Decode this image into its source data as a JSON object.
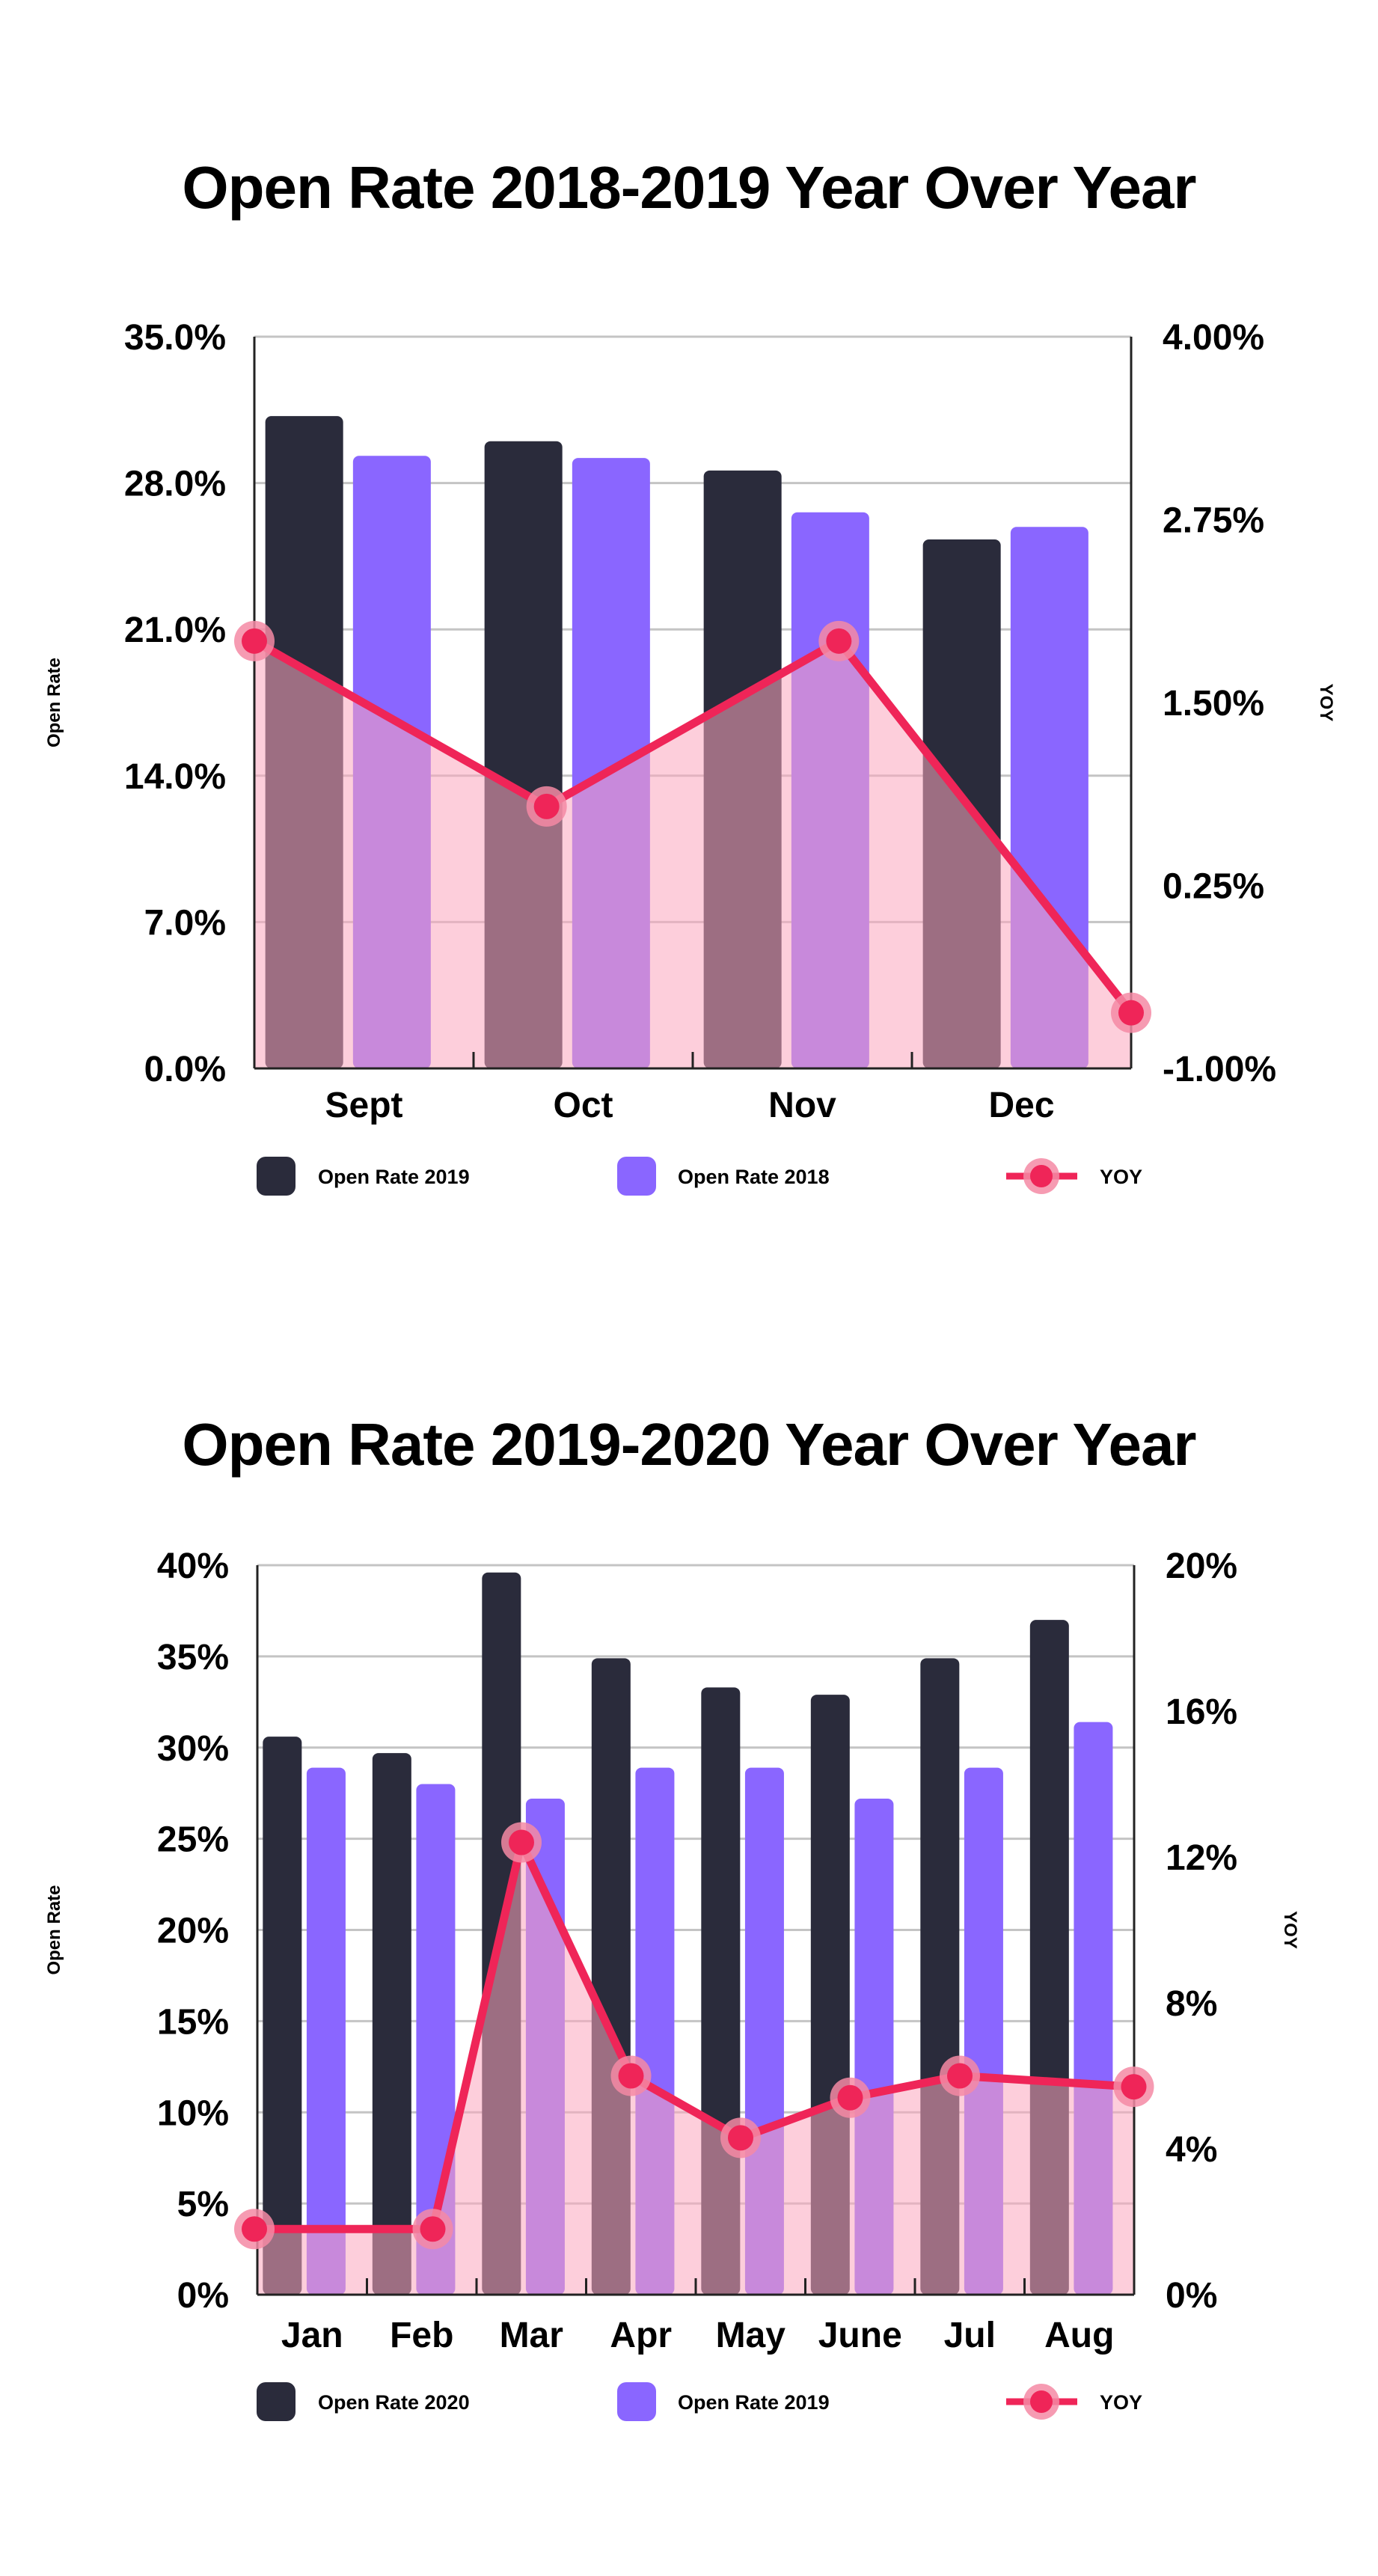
{
  "colors": {
    "dark_bar": "#2a2b3b",
    "purple_bar": "#8a66ff",
    "yoy_line": "#ef2558",
    "yoy_marker_halo": "#f48aa5",
    "yoy_area": "#fba6bd",
    "grid": "#c4c4c4",
    "axis": "#222222"
  },
  "chart_data": [
    {
      "type": "bar",
      "title": "Open Rate 2018-2019 Year Over Year",
      "categories": [
        "Sept",
        "Oct",
        "Nov",
        "Dec"
      ],
      "series": [
        {
          "name": "Open Rate 2019",
          "axis": "left",
          "color": "#2a2b3b",
          "values": [
            31.2,
            30.0,
            28.6,
            25.3
          ]
        },
        {
          "name": "Open Rate 2018",
          "axis": "left",
          "color": "#8a66ff",
          "values": [
            29.3,
            29.2,
            26.6,
            25.9
          ]
        },
        {
          "name": "YOY",
          "type": "line+area",
          "axis": "right",
          "color": "#ef2558",
          "values": [
            1.92,
            0.79,
            1.92,
            -0.62
          ]
        }
      ],
      "ylabel": "Open Rate",
      "y2label": "YOY",
      "ylim": [
        0,
        35
      ],
      "y2lim": [
        -1.0,
        4.0
      ],
      "y_ticks": [
        "0.0%",
        "7.0%",
        "14.0%",
        "21.0%",
        "28.0%",
        "35.0%"
      ],
      "y2_ticks": [
        "-1.00%",
        "0.25%",
        "1.50%",
        "2.75%",
        "4.00%"
      ],
      "grid": true,
      "legend": "bottom"
    },
    {
      "type": "bar",
      "title": "Open Rate 2019-2020 Year Over Year",
      "categories": [
        "Jan",
        "Feb",
        "Mar",
        "Apr",
        "May",
        "June",
        "Jul",
        "Aug"
      ],
      "series": [
        {
          "name": "Open Rate 2020",
          "axis": "left",
          "color": "#2a2b3b",
          "values": [
            30.6,
            29.7,
            39.6,
            34.9,
            33.3,
            32.9,
            34.9,
            37.0
          ]
        },
        {
          "name": "Open Rate 2019",
          "axis": "left",
          "color": "#8a66ff",
          "values": [
            28.9,
            28.0,
            27.2,
            28.9,
            28.9,
            27.2,
            28.9,
            31.4
          ]
        },
        {
          "name": "YOY",
          "type": "line+area",
          "axis": "right",
          "color": "#ef2558",
          "values": [
            1.8,
            1.8,
            12.4,
            6.0,
            4.3,
            5.4,
            6.0,
            5.7
          ]
        }
      ],
      "ylabel": "Open Rate",
      "y2label": "YOY",
      "ylim": [
        0,
        40
      ],
      "y2lim": [
        0,
        20
      ],
      "y_ticks": [
        "0%",
        "5%",
        "10%",
        "15%",
        "20%",
        "25%",
        "30%",
        "35%",
        "40%"
      ],
      "y2_ticks": [
        "0%",
        "4%",
        "8%",
        "12%",
        "16%",
        "20%"
      ],
      "grid": true,
      "legend": "bottom"
    }
  ]
}
